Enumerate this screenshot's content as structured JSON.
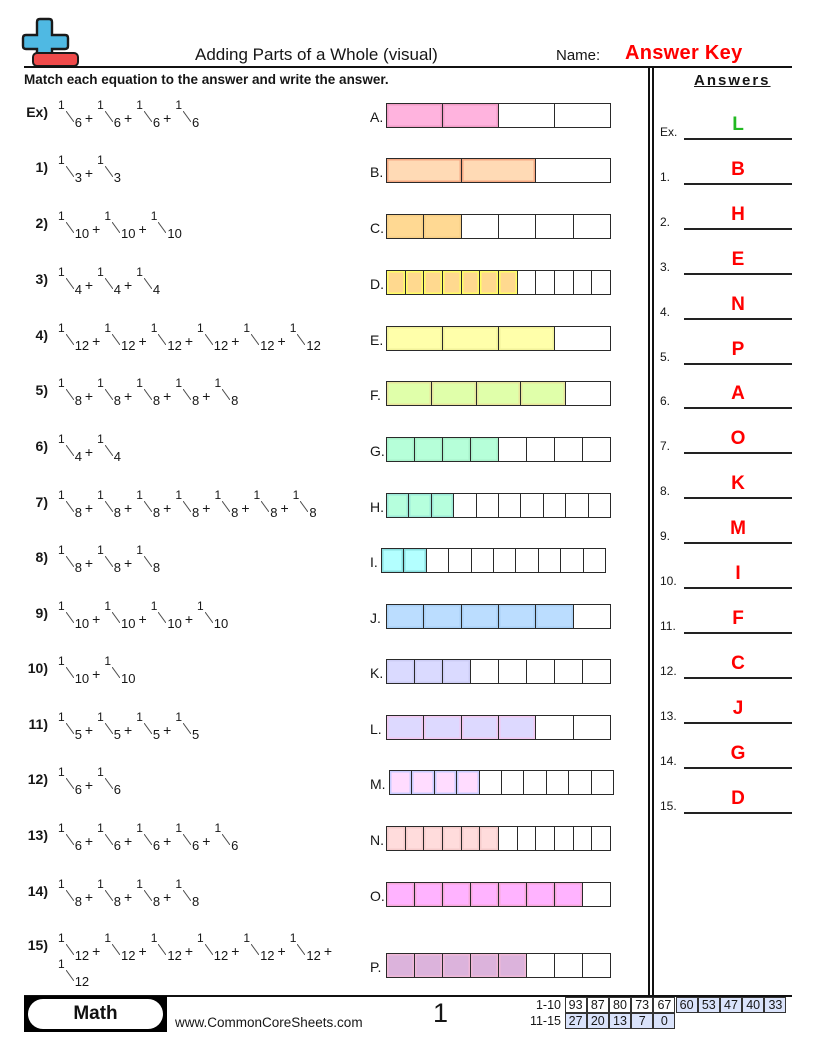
{
  "header": {
    "title": "Adding Parts of a Whole (visual)",
    "name_label": "Name:",
    "name_value": "Answer Key",
    "logo_icon": "plus-minus-logo-icon"
  },
  "instructions": "Match each equation to the answer and write the answer.",
  "problems": [
    {
      "label": "Ex)",
      "equation": "1/6 + 1/6 + 1/6 + 1/6"
    },
    {
      "label": "1)",
      "equation": "1/3 + 1/3"
    },
    {
      "label": "2)",
      "equation": "1/10 + 1/10 + 1/10"
    },
    {
      "label": "3)",
      "equation": "1/4 + 1/4 + 1/4"
    },
    {
      "label": "4)",
      "equation": "1/12 + 1/12 + 1/12 + 1/12 + 1/12 + 1/12"
    },
    {
      "label": "5)",
      "equation": "1/8 + 1/8 + 1/8 + 1/8 + 1/8"
    },
    {
      "label": "6)",
      "equation": "1/4 + 1/4"
    },
    {
      "label": "7)",
      "equation": "1/8 + 1/8 + 1/8 + 1/8 + 1/8 + 1/8 + 1/8"
    },
    {
      "label": "8)",
      "equation": "1/8 + 1/8 + 1/8"
    },
    {
      "label": "9)",
      "equation": "1/10 + 1/10 + 1/10 + 1/10"
    },
    {
      "label": "10)",
      "equation": "1/10 + 1/10"
    },
    {
      "label": "11)",
      "equation": "1/5 + 1/5 + 1/5 + 1/5"
    },
    {
      "label": "12)",
      "equation": "1/6 + 1/6"
    },
    {
      "label": "13)",
      "equation": "1/6 + 1/6 + 1/6 + 1/6 + 1/6"
    },
    {
      "label": "14)",
      "equation": "1/8 + 1/8 + 1/8 + 1/8"
    },
    {
      "label": "15)",
      "equation": "1/12 + 1/12 + 1/12 + 1/12 + 1/12 + 1/12 + 1/12"
    }
  ],
  "choices": [
    {
      "letter": "A.",
      "parts": 4,
      "filled": 2,
      "fill": "#ffb3de",
      "edge": "#f09cc6"
    },
    {
      "letter": "B.",
      "parts": 3,
      "filled": 2,
      "fill": "#ffdab5",
      "edge": "#f4a882"
    },
    {
      "letter": "C.",
      "parts": 6,
      "filled": 2,
      "fill": "#ffd993",
      "edge": "#f7cf86"
    },
    {
      "letter": "D.",
      "parts": 12,
      "filled": 7,
      "fill": "#ffd98f",
      "edge": "#ffff66"
    },
    {
      "letter": "E.",
      "parts": 4,
      "filled": 3,
      "fill": "#ffffaa",
      "edge": "#f2f29a"
    },
    {
      "letter": "F.",
      "parts": 5,
      "filled": 4,
      "fill": "#e0ffaa",
      "edge": "#e8e49c"
    },
    {
      "letter": "G.",
      "parts": 8,
      "filled": 4,
      "fill": "#b6ffd9",
      "edge": "#a8f0ca"
    },
    {
      "letter": "H.",
      "parts": 10,
      "filled": 3,
      "fill": "#b6ffdd",
      "edge": "#9ce8d8"
    },
    {
      "letter": "I.",
      "parts": 10,
      "filled": 2,
      "fill": "#b3ffff",
      "edge": "#88dddd"
    },
    {
      "letter": "J.",
      "parts": 6,
      "filled": 5,
      "fill": "#bbddff",
      "edge": "#a8d0f6"
    },
    {
      "letter": "K.",
      "parts": 8,
      "filled": 3,
      "fill": "#dadaff",
      "edge": "#cdcdf5"
    },
    {
      "letter": "L.",
      "parts": 6,
      "filled": 4,
      "fill": "#ddd9ff",
      "edge": "#f2c8f0"
    },
    {
      "letter": "M.",
      "parts": 10,
      "filled": 4,
      "fill": "#ffdcff",
      "edge": "#c8ccff"
    },
    {
      "letter": "N.",
      "parts": 12,
      "filled": 6,
      "fill": "#ffdcdc",
      "edge": "#f6cccc"
    },
    {
      "letter": "O.",
      "parts": 8,
      "filled": 7,
      "fill": "#ffb3ff",
      "edge": "#f5a8d8"
    },
    {
      "letter": "P.",
      "parts": 8,
      "filled": 5,
      "fill": "#dcb3dc",
      "edge": "#f0b8d8"
    }
  ],
  "answers": {
    "title": "Answers",
    "items": [
      {
        "label": "Ex.",
        "value": "L"
      },
      {
        "label": "1.",
        "value": "B"
      },
      {
        "label": "2.",
        "value": "H"
      },
      {
        "label": "3.",
        "value": "E"
      },
      {
        "label": "4.",
        "value": "N"
      },
      {
        "label": "5.",
        "value": "P"
      },
      {
        "label": "6.",
        "value": "A"
      },
      {
        "label": "7.",
        "value": "O"
      },
      {
        "label": "8.",
        "value": "K"
      },
      {
        "label": "9.",
        "value": "M"
      },
      {
        "label": "10.",
        "value": "I"
      },
      {
        "label": "11.",
        "value": "F"
      },
      {
        "label": "12.",
        "value": "C"
      },
      {
        "label": "13.",
        "value": "J"
      },
      {
        "label": "14.",
        "value": "G"
      },
      {
        "label": "15.",
        "value": "D"
      }
    ]
  },
  "colors": {
    "answer_key": "#ff0000",
    "example_answer": "#22b922",
    "score_highlight": "#dae3fb",
    "logo_plus": "#4fb9e3",
    "logo_minus": "#ef4a4a"
  },
  "footer": {
    "subject": "Math",
    "site": "www.CommonCoreSheets.com",
    "page": "1"
  },
  "score_table": [
    {
      "label": "1-10",
      "cells": [
        "93",
        "87",
        "80",
        "73",
        "67",
        "60",
        "53",
        "47",
        "40",
        "33"
      ],
      "highlight_from": 5
    },
    {
      "label": "11-15",
      "cells": [
        "27",
        "20",
        "13",
        "7",
        "0"
      ],
      "highlight_from": 0
    }
  ]
}
